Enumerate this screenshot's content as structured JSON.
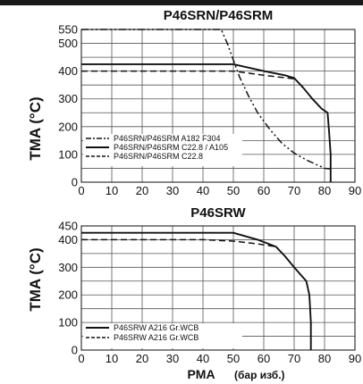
{
  "chart_data": [
    {
      "type": "line",
      "title": "P46SRN/P46SRM",
      "ylabel": "TMA (°C)",
      "xlabel": "",
      "xlim": [
        0,
        90
      ],
      "ylim": [
        0,
        550
      ],
      "xticks": [
        0,
        10,
        20,
        30,
        40,
        50,
        60,
        70,
        80,
        90
      ],
      "yticks": [
        0,
        50,
        100,
        150,
        200,
        250,
        300,
        350,
        400,
        450,
        500,
        550
      ],
      "ytick_labels": [
        "0",
        "",
        "100",
        "",
        "200",
        "",
        "300",
        "",
        "400",
        "",
        "500",
        "550"
      ],
      "grid": true,
      "legend_position": "bottom-left",
      "series": [
        {
          "name": "P46SRN/P46SRM A182 F304",
          "style": "dashdotdot",
          "x": [
            0,
            46,
            48,
            50,
            52,
            55,
            58,
            62,
            66,
            70,
            74,
            78,
            80,
            82
          ],
          "y": [
            550,
            550,
            500,
            440,
            380,
            310,
            250,
            190,
            140,
            105,
            80,
            60,
            50,
            48
          ]
        },
        {
          "name": "P46SRN/P46SRM C22.8 / A105",
          "style": "solid",
          "x": [
            0,
            50,
            60,
            67,
            70,
            73,
            76,
            79,
            81,
            81.5,
            82,
            82
          ],
          "y": [
            425,
            425,
            400,
            385,
            375,
            340,
            300,
            265,
            250,
            180,
            100,
            0
          ]
        },
        {
          "name": "P46SRN/P46SRM C22.8",
          "style": "dashed",
          "x": [
            0,
            50,
            60,
            68,
            70
          ],
          "y": [
            400,
            400,
            385,
            375,
            372
          ]
        }
      ]
    },
    {
      "type": "line",
      "title": "P46SRW",
      "ylabel": "TMA (°C)",
      "xlabel": "PMA",
      "xunit": "(бар изб.)",
      "xlim": [
        0,
        90
      ],
      "ylim": [
        0,
        450
      ],
      "xticks": [
        0,
        10,
        20,
        30,
        40,
        50,
        60,
        70,
        80,
        90
      ],
      "yticks": [
        0,
        50,
        100,
        150,
        200,
        250,
        300,
        350,
        400,
        450
      ],
      "ytick_labels": [
        "0",
        "",
        "100",
        "",
        "200",
        "",
        "300",
        "",
        "400",
        "450"
      ],
      "grid": true,
      "legend_position": "bottom-left",
      "series": [
        {
          "name": "P46SRW A216 Gr.WCB",
          "style": "solid",
          "x": [
            0,
            50,
            58,
            64,
            67,
            70,
            72,
            74,
            75,
            75.5,
            75.5
          ],
          "y": [
            425,
            425,
            400,
            375,
            340,
            300,
            275,
            250,
            200,
            100,
            0
          ]
        },
        {
          "name": "P46SRW A216 Gr.WCB",
          "style": "dashed",
          "x": [
            0,
            40,
            50,
            58,
            64
          ],
          "y": [
            400,
            400,
            395,
            385,
            375
          ]
        }
      ]
    }
  ]
}
